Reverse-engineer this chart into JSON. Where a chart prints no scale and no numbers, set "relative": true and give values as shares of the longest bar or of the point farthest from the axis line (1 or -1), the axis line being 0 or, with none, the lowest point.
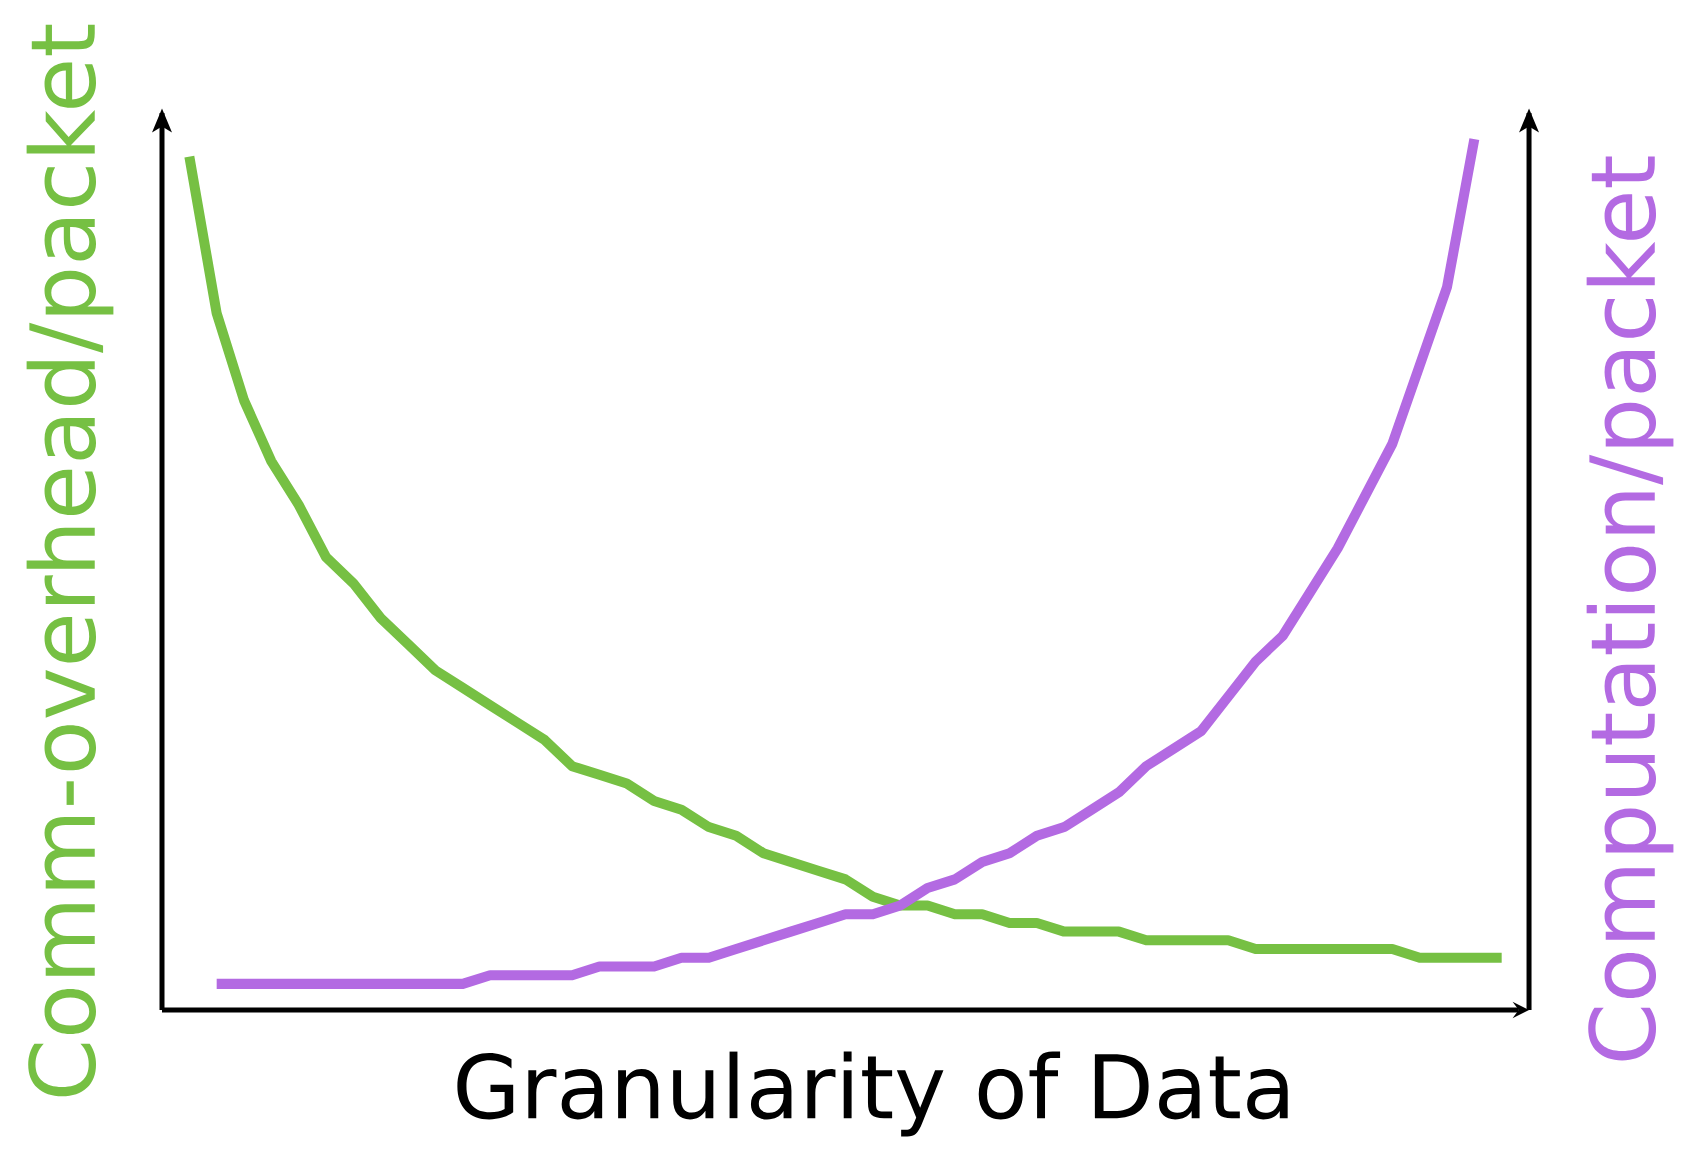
{
  "chart_data": {
    "type": "line",
    "relative": true,
    "xlabel": "Granularity of Data",
    "ylabel": "Comm-overhead/packet",
    "y2label": "Computation/packet",
    "categories": [
      null,
      null,
      null,
      null,
      null,
      null,
      null,
      null,
      null,
      null,
      null,
      null,
      null,
      null,
      null,
      null,
      null,
      null,
      null,
      null,
      null,
      null,
      null,
      null,
      null,
      null,
      null,
      null,
      null,
      null,
      null,
      null,
      null,
      null,
      null,
      null,
      null,
      null,
      null,
      null,
      null,
      null,
      null,
      null,
      null,
      null,
      null,
      null,
      null,
      null,
      null
    ],
    "series": [
      {
        "color": "#76c043",
        "values": [
          null,
          0.98,
          0.8,
          0.7,
          0.63,
          0.58,
          0.52,
          0.49,
          0.45,
          0.42,
          0.39,
          0.37,
          0.35,
          0.33,
          0.31,
          0.28,
          0.27,
          0.26,
          0.24,
          0.23,
          0.21,
          0.2,
          0.18,
          0.17,
          0.16,
          0.15,
          0.13,
          0.12,
          0.12,
          0.11,
          0.11,
          0.1,
          0.1,
          0.09,
          0.09,
          0.09,
          0.08,
          0.08,
          0.08,
          0.08,
          0.07,
          0.07,
          0.07,
          0.07,
          0.07,
          0.07,
          0.06,
          0.06,
          0.06,
          0.06,
          null
        ]
      },
      {
        "color": "#b36ae2",
        "values": [
          null,
          null,
          0.03,
          0.03,
          0.03,
          0.03,
          0.03,
          0.03,
          0.03,
          0.03,
          0.03,
          0.03,
          0.04,
          0.04,
          0.04,
          0.04,
          0.05,
          0.05,
          0.05,
          0.06,
          0.06,
          0.07,
          0.08,
          0.09,
          0.1,
          0.11,
          0.11,
          0.12,
          0.14,
          0.15,
          0.17,
          0.18,
          0.2,
          0.21,
          0.23,
          0.25,
          0.28,
          0.3,
          0.32,
          0.36,
          0.4,
          0.43,
          0.48,
          0.53,
          0.59,
          0.65,
          0.74,
          0.83,
          1,
          null,
          null
        ]
      }
    ]
  }
}
